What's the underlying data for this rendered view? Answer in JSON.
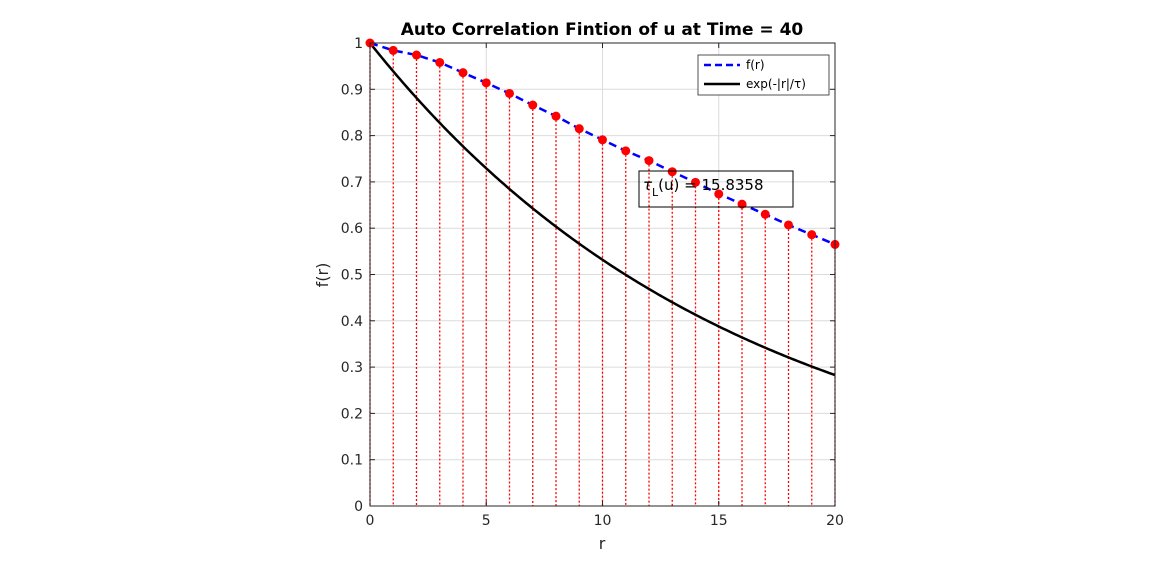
{
  "chart_data": {
    "type": "line",
    "title": "Auto Correlation Fintion of u at Time = 40",
    "xlabel": "r",
    "ylabel": "f(r)",
    "xlim": [
      0,
      20
    ],
    "ylim": [
      0,
      1
    ],
    "xticks": [
      0,
      5,
      10,
      15,
      20
    ],
    "yticks": [
      0,
      0.1,
      0.2,
      0.3,
      0.4,
      0.5,
      0.6,
      0.7,
      0.8,
      0.9,
      1
    ],
    "grid": true,
    "legend_position": "top-right",
    "x": [
      0,
      1,
      2,
      3,
      4,
      5,
      6,
      7,
      8,
      9,
      10,
      11,
      12,
      13,
      14,
      15,
      16,
      17,
      18,
      19,
      20
    ],
    "series": [
      {
        "name": "f(r)",
        "style": "dashed",
        "color": "#0000ff",
        "marker_color": "#ff0000",
        "values": [
          1.0,
          0.984,
          0.974,
          0.958,
          0.936,
          0.914,
          0.891,
          0.866,
          0.842,
          0.815,
          0.791,
          0.767,
          0.746,
          0.722,
          0.699,
          0.674,
          0.652,
          0.63,
          0.607,
          0.586,
          0.565
        ]
      },
      {
        "name": "exp(-|r|/τ)",
        "style": "solid",
        "color": "#000000",
        "tau": 15.8358,
        "values": [
          1.0,
          0.939,
          0.881,
          0.827,
          0.777,
          0.729,
          0.685,
          0.643,
          0.604,
          0.567,
          0.532,
          0.5,
          0.469,
          0.44,
          0.413,
          0.388,
          0.364,
          0.342,
          0.321,
          0.302,
          0.283
        ]
      }
    ],
    "stem_color": "#ff0000",
    "annotation": {
      "label_tau": "τ",
      "label_sub": "L",
      "label_rest": "(u) = 15.8358",
      "anchor": [
        12.0,
        0.705
      ]
    }
  }
}
